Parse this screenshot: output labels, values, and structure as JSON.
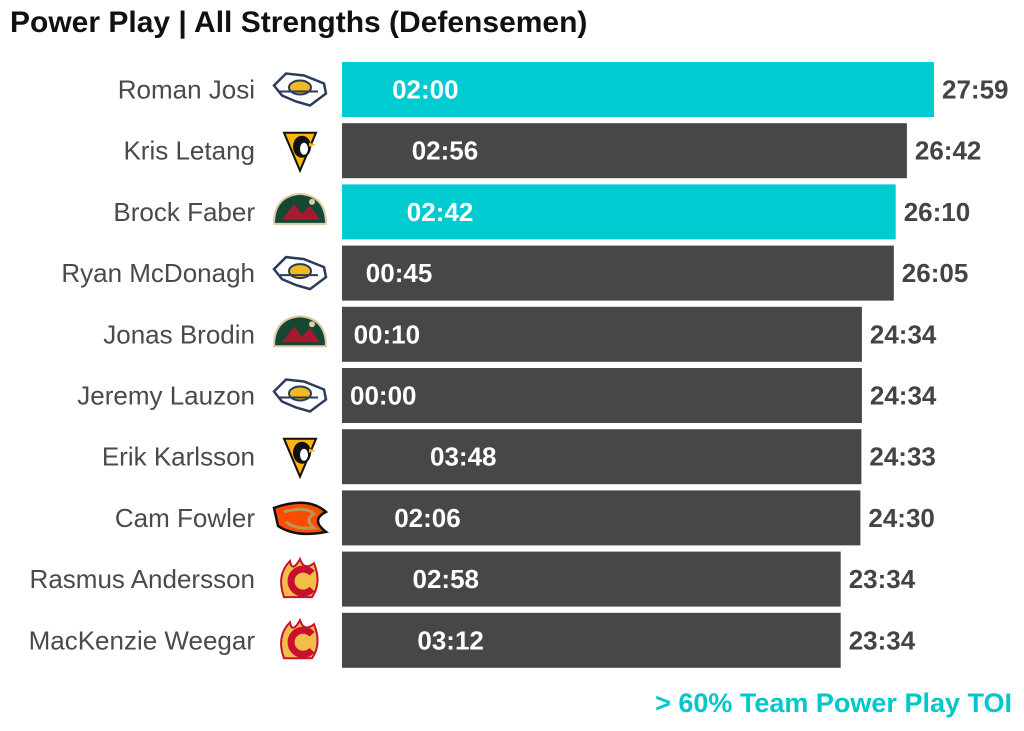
{
  "chart_data": {
    "type": "bar",
    "orientation": "horizontal",
    "title": "Power Play | All Strengths (Defensemen)",
    "legend_note": "> 60% Team Power Play TOI",
    "colors": {
      "highlight": "#00cbd0",
      "default": "#474747"
    },
    "players": [
      {
        "name": "Roman Josi",
        "team_icon": "predators-logo-icon",
        "pp_toi": "02:00",
        "total_toi": "27:59",
        "total_minutes": 27.98,
        "pp_minutes": 2.0,
        "highlight": true
      },
      {
        "name": "Kris Letang",
        "team_icon": "penguins-logo-icon",
        "pp_toi": "02:56",
        "total_toi": "26:42",
        "total_minutes": 26.7,
        "pp_minutes": 2.93,
        "highlight": false
      },
      {
        "name": "Brock Faber",
        "team_icon": "wild-logo-icon",
        "pp_toi": "02:42",
        "total_toi": "26:10",
        "total_minutes": 26.17,
        "pp_minutes": 2.7,
        "highlight": true
      },
      {
        "name": "Ryan McDonagh",
        "team_icon": "predators-logo-icon",
        "pp_toi": "00:45",
        "total_toi": "26:05",
        "total_minutes": 26.08,
        "pp_minutes": 0.75,
        "highlight": false
      },
      {
        "name": "Jonas Brodin",
        "team_icon": "wild-logo-icon",
        "pp_toi": "00:10",
        "total_toi": "24:34",
        "total_minutes": 24.57,
        "pp_minutes": 0.17,
        "highlight": false
      },
      {
        "name": "Jeremy Lauzon",
        "team_icon": "predators-logo-icon",
        "pp_toi": "00:00",
        "total_toi": "24:34",
        "total_minutes": 24.57,
        "pp_minutes": 0.0,
        "highlight": false
      },
      {
        "name": "Erik Karlsson",
        "team_icon": "penguins-logo-icon",
        "pp_toi": "03:48",
        "total_toi": "24:33",
        "total_minutes": 24.55,
        "pp_minutes": 3.8,
        "highlight": false
      },
      {
        "name": "Cam Fowler",
        "team_icon": "ducks-logo-icon",
        "pp_toi": "02:06",
        "total_toi": "24:30",
        "total_minutes": 24.5,
        "pp_minutes": 2.1,
        "highlight": false
      },
      {
        "name": "Rasmus Andersson",
        "team_icon": "flames-logo-icon",
        "pp_toi": "02:58",
        "total_toi": "23:34",
        "total_minutes": 23.57,
        "pp_minutes": 2.97,
        "highlight": false
      },
      {
        "name": "MacKenzie Weegar",
        "team_icon": "flames-logo-icon",
        "pp_toi": "03:12",
        "total_toi": "23:34",
        "total_minutes": 23.57,
        "pp_minutes": 3.2,
        "highlight": false
      }
    ]
  }
}
